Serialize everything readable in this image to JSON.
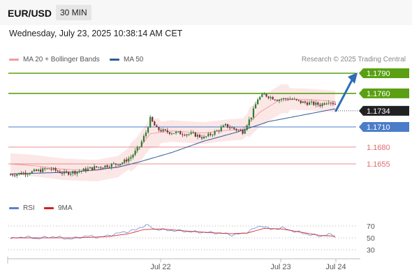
{
  "header": {
    "symbol": "EUR/USD",
    "timeframe": "30 MIN"
  },
  "datetime": "Wednesday, July 23, 2025 10:38:14 AM CET",
  "credit": "Research © 2025 Trading Central",
  "colors": {
    "bollinger": "#f07878",
    "ma50": "#2f5b9a",
    "target": "#5aa012",
    "pivot": "#4a7cc9",
    "support": "#e26a6a",
    "rsi": "#5b7fd1",
    "rsi_ma": "#d42020",
    "price_badge": "#222222",
    "arrow": "#2f6db5"
  },
  "chart_data": [
    {
      "type": "candlestick",
      "legend": [
        "MA 20 + Bollinger Bands",
        "MA 50"
      ],
      "ylim": [
        1.1625,
        1.18
      ],
      "current_price": "1.1734",
      "levels": [
        {
          "value": 1.179,
          "label": "1.1790",
          "kind": "target"
        },
        {
          "value": 1.176,
          "label": "1.1760",
          "kind": "target"
        },
        {
          "value": 1.171,
          "label": "1.1710",
          "kind": "pivot"
        },
        {
          "value": 1.168,
          "label": "1.1680",
          "kind": "support"
        },
        {
          "value": 1.1655,
          "label": "1.1655",
          "kind": "support"
        }
      ],
      "x_ticks": [
        "Jul 22",
        "Jul 23",
        "Jul 24"
      ],
      "price_path": [
        [
          0,
          1.1639
        ],
        [
          10,
          1.1643
        ],
        [
          18,
          1.1648
        ],
        [
          25,
          1.1641
        ],
        [
          32,
          1.1644
        ],
        [
          38,
          1.1649
        ],
        [
          46,
          1.1653
        ],
        [
          52,
          1.1657
        ],
        [
          56,
          1.1665
        ],
        [
          60,
          1.1681
        ],
        [
          63,
          1.1702
        ],
        [
          65,
          1.1722
        ],
        [
          68,
          1.1707
        ],
        [
          72,
          1.1703
        ],
        [
          78,
          1.1701
        ],
        [
          85,
          1.1699
        ],
        [
          90,
          1.1694
        ],
        [
          96,
          1.1704
        ],
        [
          100,
          1.1712
        ],
        [
          106,
          1.1705
        ],
        [
          108,
          1.1703
        ],
        [
          112,
          1.1726
        ],
        [
          115,
          1.1752
        ],
        [
          118,
          1.1758
        ],
        [
          124,
          1.1751
        ],
        [
          130,
          1.1752
        ],
        [
          135,
          1.1747
        ],
        [
          140,
          1.1745
        ],
        [
          144,
          1.1743
        ],
        [
          148,
          1.1749
        ],
        [
          151,
          1.1744
        ]
      ],
      "ma50_path": [
        [
          0,
          1.164
        ],
        [
          30,
          1.1643
        ],
        [
          50,
          1.165
        ],
        [
          60,
          1.1658
        ],
        [
          75,
          1.1672
        ],
        [
          90,
          1.1689
        ],
        [
          105,
          1.1702
        ],
        [
          120,
          1.1718
        ],
        [
          151,
          1.1737
        ]
      ],
      "bollinger_mid": [
        [
          0,
          1.1655
        ],
        [
          12,
          1.1652
        ],
        [
          25,
          1.1647
        ],
        [
          40,
          1.1645
        ],
        [
          50,
          1.1651
        ],
        [
          58,
          1.167
        ],
        [
          65,
          1.17
        ],
        [
          75,
          1.1704
        ],
        [
          90,
          1.1701
        ],
        [
          100,
          1.1705
        ],
        [
          108,
          1.1707
        ],
        [
          116,
          1.1732
        ],
        [
          126,
          1.1752
        ],
        [
          138,
          1.1751
        ],
        [
          151,
          1.1748
        ]
      ],
      "bollinger_band_width": 0.0016,
      "forecast_arrow": {
        "from": 1.1734,
        "to": 1.179
      }
    },
    {
      "type": "line",
      "legend": [
        "RSI",
        "9MA"
      ],
      "ylim": [
        20,
        80
      ],
      "y_ticks": [
        "70",
        "50",
        "30"
      ],
      "reference_lines": [
        70,
        50,
        30
      ],
      "series": [
        {
          "name": "RSI",
          "points": [
            [
              0,
              48
            ],
            [
              6,
              52
            ],
            [
              12,
              49
            ],
            [
              20,
              52
            ],
            [
              28,
              48
            ],
            [
              35,
              53
            ],
            [
              42,
              51
            ],
            [
              48,
              56
            ],
            [
              53,
              60
            ],
            [
              58,
              63
            ],
            [
              63,
              72
            ],
            [
              67,
              65
            ],
            [
              72,
              63
            ],
            [
              78,
              62
            ],
            [
              85,
              60
            ],
            [
              92,
              59
            ],
            [
              98,
              58
            ],
            [
              103,
              55
            ],
            [
              108,
              57
            ],
            [
              113,
              65
            ],
            [
              117,
              71
            ],
            [
              121,
              64
            ],
            [
              126,
              67
            ],
            [
              131,
              62
            ],
            [
              136,
              58
            ],
            [
              140,
              55
            ],
            [
              144,
              53
            ],
            [
              148,
              56
            ],
            [
              151,
              52
            ]
          ]
        },
        {
          "name": "9MA",
          "points": [
            [
              0,
              50
            ],
            [
              15,
              50
            ],
            [
              30,
              50
            ],
            [
              45,
              52
            ],
            [
              55,
              57
            ],
            [
              62,
              64
            ],
            [
              70,
              65
            ],
            [
              80,
              62
            ],
            [
              92,
              59
            ],
            [
              102,
              57
            ],
            [
              110,
              58
            ],
            [
              118,
              66
            ],
            [
              126,
              65
            ],
            [
              136,
              59
            ],
            [
              144,
              54
            ],
            [
              151,
              53
            ]
          ]
        }
      ]
    }
  ]
}
